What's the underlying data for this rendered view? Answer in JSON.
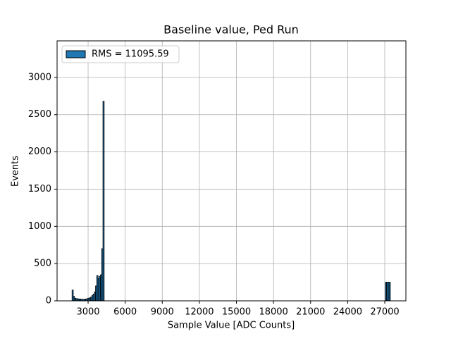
{
  "chart_data": {
    "type": "histogram",
    "title": "Baseline value, Ped Run",
    "xlabel": "Sample Value [ADC Counts]",
    "ylabel": "Events",
    "bins": [
      1700,
      1800,
      1900,
      2000,
      2100,
      2200,
      2300,
      2400,
      2500,
      2600,
      2700,
      2800,
      2900,
      3000,
      3100,
      3200,
      3300,
      3400,
      3500,
      3600,
      3700,
      3800,
      3900,
      4000,
      4100,
      4200,
      4300,
      4400,
      27050,
      27150,
      27250,
      27350,
      27450
    ],
    "series": [
      {
        "name": "RMS = 11095.59",
        "color": "#1f77b4",
        "edgecolor": "#000000",
        "values": [
          145,
          60,
          35,
          30,
          28,
          25,
          25,
          22,
          20,
          20,
          22,
          25,
          30,
          35,
          40,
          50,
          70,
          90,
          120,
          200,
          340,
          300,
          330,
          350,
          700,
          2680,
          0,
          0,
          250,
          250,
          250,
          250
        ]
      }
    ],
    "xlim": [
      490,
      28710
    ],
    "ylim": [
      0,
      3491
    ],
    "xticks": [
      3000,
      6000,
      9000,
      12000,
      15000,
      18000,
      21000,
      24000,
      27000
    ],
    "yticks": [
      0,
      500,
      1000,
      1500,
      2000,
      2500,
      3000
    ],
    "grid": true,
    "legend": "upper left"
  }
}
